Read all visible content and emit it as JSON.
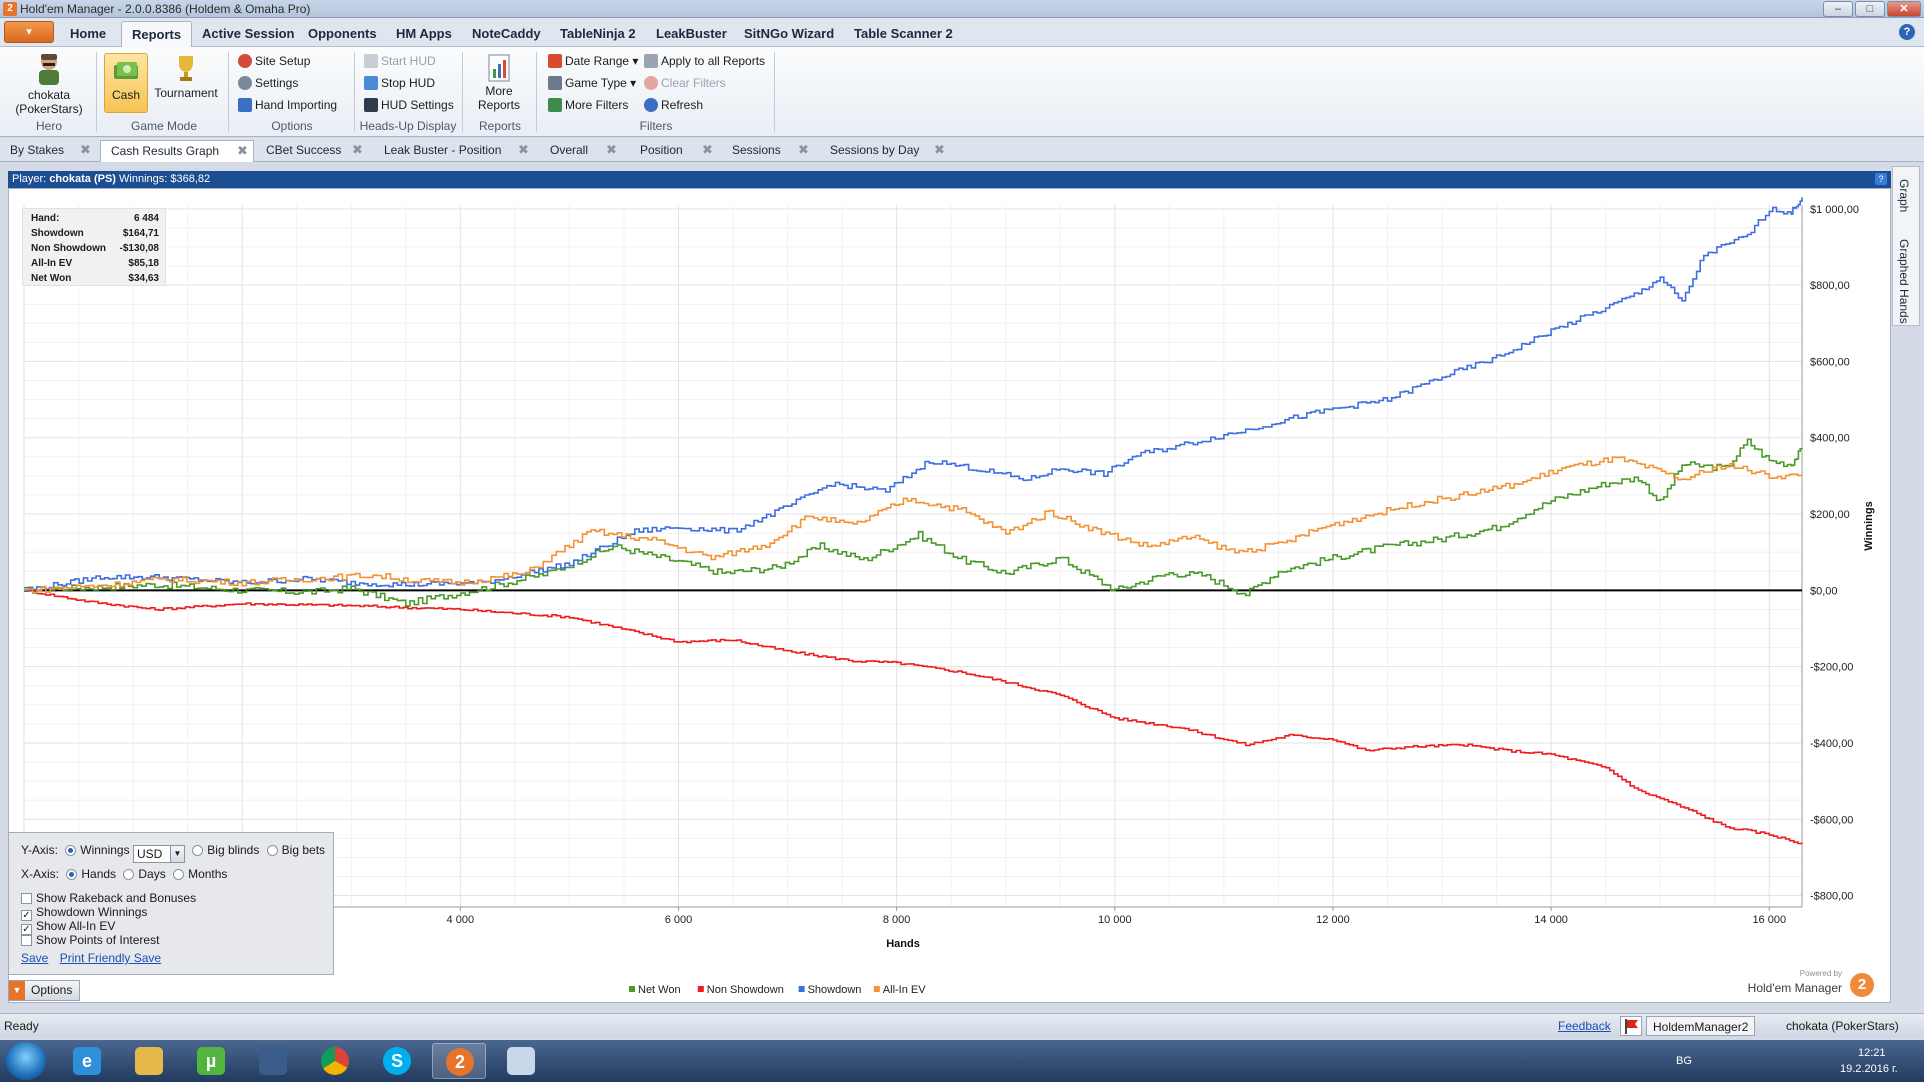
{
  "window": {
    "title": "Hold'em Manager - 2.0.0.8386 (Holdem & Omaha Pro)",
    "app_icon_glyph": "2",
    "minimize_glyph": "–",
    "maximize_glyph": "□",
    "close_glyph": "✕"
  },
  "menu": {
    "app_button_glyph": "▾",
    "tabs": [
      "Home",
      "Reports",
      "Active Session",
      "Opponents",
      "HM Apps",
      "NoteCaddy",
      "TableNinja 2",
      "LeakBuster",
      "SitNGo Wizard",
      "Table Scanner 2"
    ],
    "active_tab": "Reports",
    "help_glyph": "?"
  },
  "ribbon": {
    "hero": {
      "name": "chokata",
      "site": "(PokerStars)",
      "group_label": "Hero"
    },
    "game_mode": {
      "cash": "Cash",
      "tournament": "Tournament",
      "group_label": "Game Mode"
    },
    "options": {
      "site_setup": "Site Setup",
      "settings": "Settings",
      "hand_importing": "Hand Importing",
      "group_label": "Options"
    },
    "hud": {
      "start": "Start HUD",
      "stop": "Stop HUD",
      "settings": "HUD Settings",
      "group_label": "Heads-Up Display"
    },
    "reports": {
      "more_line1": "More",
      "more_line2": "Reports",
      "group_label": "Reports"
    },
    "filters": {
      "date_range": "Date Range",
      "game_type": "Game Type",
      "more_filters": "More Filters",
      "apply_all": "Apply to all Reports",
      "clear": "Clear Filters",
      "refresh": "Refresh",
      "group_label": "Filters"
    }
  },
  "doc_tabs": [
    "By Stakes",
    "Cash Results Graph",
    "CBet Success",
    "Leak Buster - Position",
    "Overall",
    "Position",
    "Sessions",
    "Sessions by Day"
  ],
  "doc_tab_close_glyph": "✖",
  "player_bar": {
    "label": "Player:",
    "player": "chokata (PS)",
    "winnings_label": "Winnings:",
    "winnings": "$368,82",
    "help_glyph": "?"
  },
  "side_tabs": [
    "Graph",
    "Graphed Hands"
  ],
  "stats": [
    {
      "k": "Hand:",
      "v": "6 484"
    },
    {
      "k": "Showdown",
      "v": "$164,71"
    },
    {
      "k": "Non Showdown",
      "v": "-$130,08"
    },
    {
      "k": "All-In EV",
      "v": "$85,18"
    },
    {
      "k": "Net Won",
      "v": "$34,63"
    }
  ],
  "chart_data": {
    "type": "line",
    "xlabel": "Hands",
    "ylabel": "Winnings",
    "xlim": [
      0,
      16300
    ],
    "ylim": [
      -830,
      1010
    ],
    "x_ticks": [
      4000,
      6000,
      8000,
      10000,
      12000,
      14000,
      16000
    ],
    "x_tick_labels": [
      "4 000",
      "6 000",
      "8 000",
      "10 000",
      "12 000",
      "14 000",
      "16 000"
    ],
    "y_ticks": [
      1000,
      800,
      600,
      400,
      200,
      0,
      -200,
      -400,
      -600,
      -800
    ],
    "y_tick_labels": [
      "$1 000,00",
      "$800,00",
      "$600,00",
      "$400,00",
      "$200,00",
      "$0,00",
      "-$200,00",
      "-$400,00",
      "-$600,00",
      "-$800,00"
    ],
    "grid": true,
    "legend_position": "bottom-center",
    "series": [
      {
        "name": "Net Won",
        "color": "#4a9a2a",
        "points": [
          [
            0,
            0
          ],
          [
            800,
            10
          ],
          [
            1200,
            15
          ],
          [
            2000,
            0
          ],
          [
            2600,
            -5
          ],
          [
            3000,
            5
          ],
          [
            3500,
            -35
          ],
          [
            4200,
            5
          ],
          [
            4800,
            45
          ],
          [
            5400,
            115
          ],
          [
            6000,
            75
          ],
          [
            6400,
            45
          ],
          [
            6900,
            60
          ],
          [
            7300,
            115
          ],
          [
            7700,
            80
          ],
          [
            8200,
            145
          ],
          [
            8600,
            80
          ],
          [
            9000,
            45
          ],
          [
            9500,
            85
          ],
          [
            10000,
            0
          ],
          [
            10500,
            45
          ],
          [
            10800,
            40
          ],
          [
            11200,
            -10
          ],
          [
            11500,
            50
          ],
          [
            12000,
            85
          ],
          [
            12500,
            115
          ],
          [
            13000,
            135
          ],
          [
            13500,
            165
          ],
          [
            14000,
            235
          ],
          [
            14500,
            280
          ],
          [
            14800,
            295
          ],
          [
            15000,
            230
          ],
          [
            15200,
            330
          ],
          [
            15600,
            320
          ],
          [
            15800,
            390
          ],
          [
            16000,
            340
          ],
          [
            16200,
            330
          ],
          [
            16300,
            370
          ]
        ]
      },
      {
        "name": "Non Showdown",
        "color": "#ee1c1c",
        "points": [
          [
            0,
            0
          ],
          [
            600,
            -30
          ],
          [
            1200,
            -50
          ],
          [
            2000,
            -35
          ],
          [
            3000,
            -40
          ],
          [
            4000,
            -50
          ],
          [
            5000,
            -70
          ],
          [
            6000,
            -135
          ],
          [
            6500,
            -130
          ],
          [
            7000,
            -160
          ],
          [
            7600,
            -185
          ],
          [
            8000,
            -190
          ],
          [
            8600,
            -215
          ],
          [
            9000,
            -240
          ],
          [
            9500,
            -275
          ],
          [
            10000,
            -335
          ],
          [
            10600,
            -360
          ],
          [
            11200,
            -405
          ],
          [
            11600,
            -380
          ],
          [
            12000,
            -390
          ],
          [
            12300,
            -420
          ],
          [
            12700,
            -410
          ],
          [
            13200,
            -405
          ],
          [
            13600,
            -420
          ],
          [
            14000,
            -430
          ],
          [
            14500,
            -465
          ],
          [
            14800,
            -525
          ],
          [
            15000,
            -545
          ],
          [
            15300,
            -580
          ],
          [
            15600,
            -620
          ],
          [
            16000,
            -640
          ],
          [
            16300,
            -665
          ]
        ]
      },
      {
        "name": "Showdown",
        "color": "#3e6fe0",
        "points": [
          [
            0,
            0
          ],
          [
            700,
            35
          ],
          [
            1200,
            35
          ],
          [
            2000,
            20
          ],
          [
            2600,
            30
          ],
          [
            3000,
            20
          ],
          [
            3500,
            15
          ],
          [
            4200,
            20
          ],
          [
            5000,
            70
          ],
          [
            5600,
            155
          ],
          [
            6000,
            165
          ],
          [
            6500,
            155
          ],
          [
            7000,
            220
          ],
          [
            7400,
            280
          ],
          [
            7900,
            260
          ],
          [
            8300,
            340
          ],
          [
            8700,
            320
          ],
          [
            9200,
            290
          ],
          [
            9500,
            320
          ],
          [
            9900,
            305
          ],
          [
            10200,
            355
          ],
          [
            10600,
            380
          ],
          [
            11200,
            420
          ],
          [
            11600,
            450
          ],
          [
            12000,
            475
          ],
          [
            12500,
            500
          ],
          [
            13000,
            560
          ],
          [
            13500,
            610
          ],
          [
            14000,
            680
          ],
          [
            14500,
            740
          ],
          [
            14800,
            780
          ],
          [
            15000,
            820
          ],
          [
            15200,
            755
          ],
          [
            15400,
            880
          ],
          [
            15800,
            930
          ],
          [
            16000,
            1000
          ],
          [
            16200,
            990
          ],
          [
            16300,
            1030
          ]
        ]
      },
      {
        "name": "All-In EV",
        "color": "#f39232",
        "points": [
          [
            0,
            0
          ],
          [
            800,
            15
          ],
          [
            1300,
            30
          ],
          [
            2000,
            20
          ],
          [
            2600,
            30
          ],
          [
            3200,
            40
          ],
          [
            3600,
            25
          ],
          [
            4000,
            20
          ],
          [
            4600,
            45
          ],
          [
            5200,
            155
          ],
          [
            5800,
            130
          ],
          [
            6300,
            85
          ],
          [
            6800,
            120
          ],
          [
            7200,
            195
          ],
          [
            7600,
            170
          ],
          [
            8100,
            240
          ],
          [
            8600,
            210
          ],
          [
            9000,
            150
          ],
          [
            9400,
            205
          ],
          [
            9800,
            160
          ],
          [
            10300,
            115
          ],
          [
            10700,
            140
          ],
          [
            11100,
            100
          ],
          [
            11500,
            120
          ],
          [
            11900,
            165
          ],
          [
            12300,
            195
          ],
          [
            12800,
            230
          ],
          [
            13200,
            250
          ],
          [
            13700,
            280
          ],
          [
            14100,
            320
          ],
          [
            14600,
            345
          ],
          [
            14900,
            320
          ],
          [
            15200,
            290
          ],
          [
            15600,
            330
          ],
          [
            16000,
            300
          ],
          [
            16300,
            300
          ]
        ]
      }
    ]
  },
  "options": {
    "yaxis_label": "Y-Axis:",
    "yaxis_winnings": "Winnings",
    "currency": "USD",
    "yaxis_bb": "Big blinds",
    "yaxis_bigbets": "Big bets",
    "xaxis_label": "X-Axis:",
    "xaxis_hands": "Hands",
    "xaxis_days": "Days",
    "xaxis_months": "Months",
    "show_rakeback": "Show Rakeback and Bonuses",
    "showdown_winnings": "Showdown Winnings",
    "show_allin_ev": "Show All-In EV",
    "show_poi": "Show Points of Interest",
    "save": "Save",
    "print_save": "Print Friendly Save",
    "options_button": "Options",
    "check_glyph": "✓",
    "dropdown_glyph": "▼",
    "options_arrow_glyph": "▼"
  },
  "brand": {
    "powered": "Powered by",
    "name": "Hold'em Manager",
    "logo_glyph": "2"
  },
  "status": {
    "ready": "Ready",
    "feedback": "Feedback",
    "app": "HoldemManager2",
    "user": "chokata (PokerStars)"
  },
  "taskbar": {
    "icons": [
      "windows-start",
      "internet-explorer",
      "file-explorer",
      "utorrent",
      "remote-desktop",
      "chrome",
      "skype",
      "holdem-manager",
      "paint"
    ],
    "tray_lang": "BG",
    "time": "12:21",
    "date": "19.2.2016 г."
  }
}
